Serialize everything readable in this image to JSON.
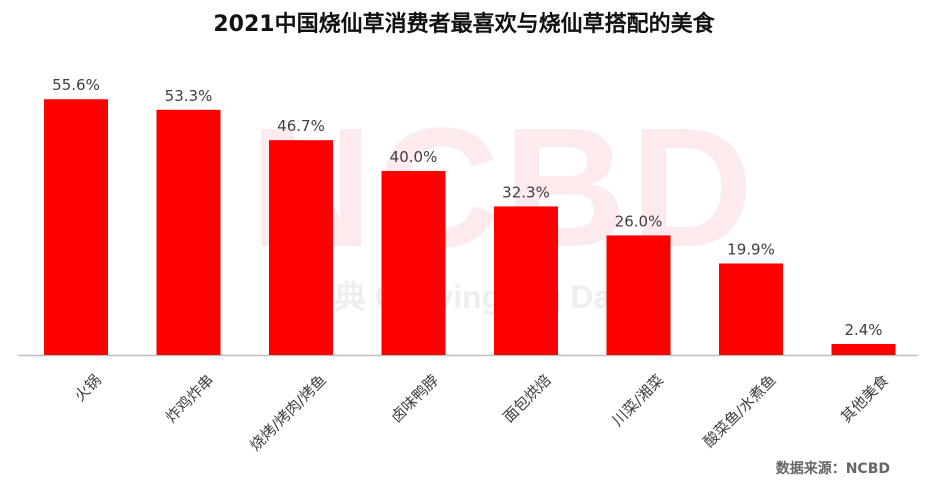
{
  "title": "2021中国烧仙草消费者最喜欢与烧仙草搭配的美食",
  "source": "数据来源：NCBD",
  "watermark": {
    "main": "NCBD",
    "sub": "餐宝典 Canying Big Data"
  },
  "chart_data": {
    "type": "bar",
    "title": "2021中国烧仙草消费者最喜欢与烧仙草搭配的美食",
    "categories": [
      "火锅",
      "炸鸡炸串",
      "烧烤/烤肉/烤鱼",
      "卤味鸭脖",
      "面包烘焙",
      "川菜/湘菜",
      "酸菜鱼/水煮鱼",
      "其他美食"
    ],
    "values": [
      55.6,
      53.3,
      46.7,
      40.0,
      32.3,
      26.0,
      19.9,
      2.4
    ],
    "labels": [
      "55.6%",
      "53.3%",
      "46.7%",
      "40.0%",
      "32.3%",
      "26.0%",
      "19.9%",
      "2.4%"
    ],
    "unit": "%",
    "ylim": [
      0,
      60
    ],
    "grid": false,
    "legend": "none",
    "bar_color": "#ff0000",
    "axis_color": "#bfbfbf",
    "label_color": "#404040"
  }
}
